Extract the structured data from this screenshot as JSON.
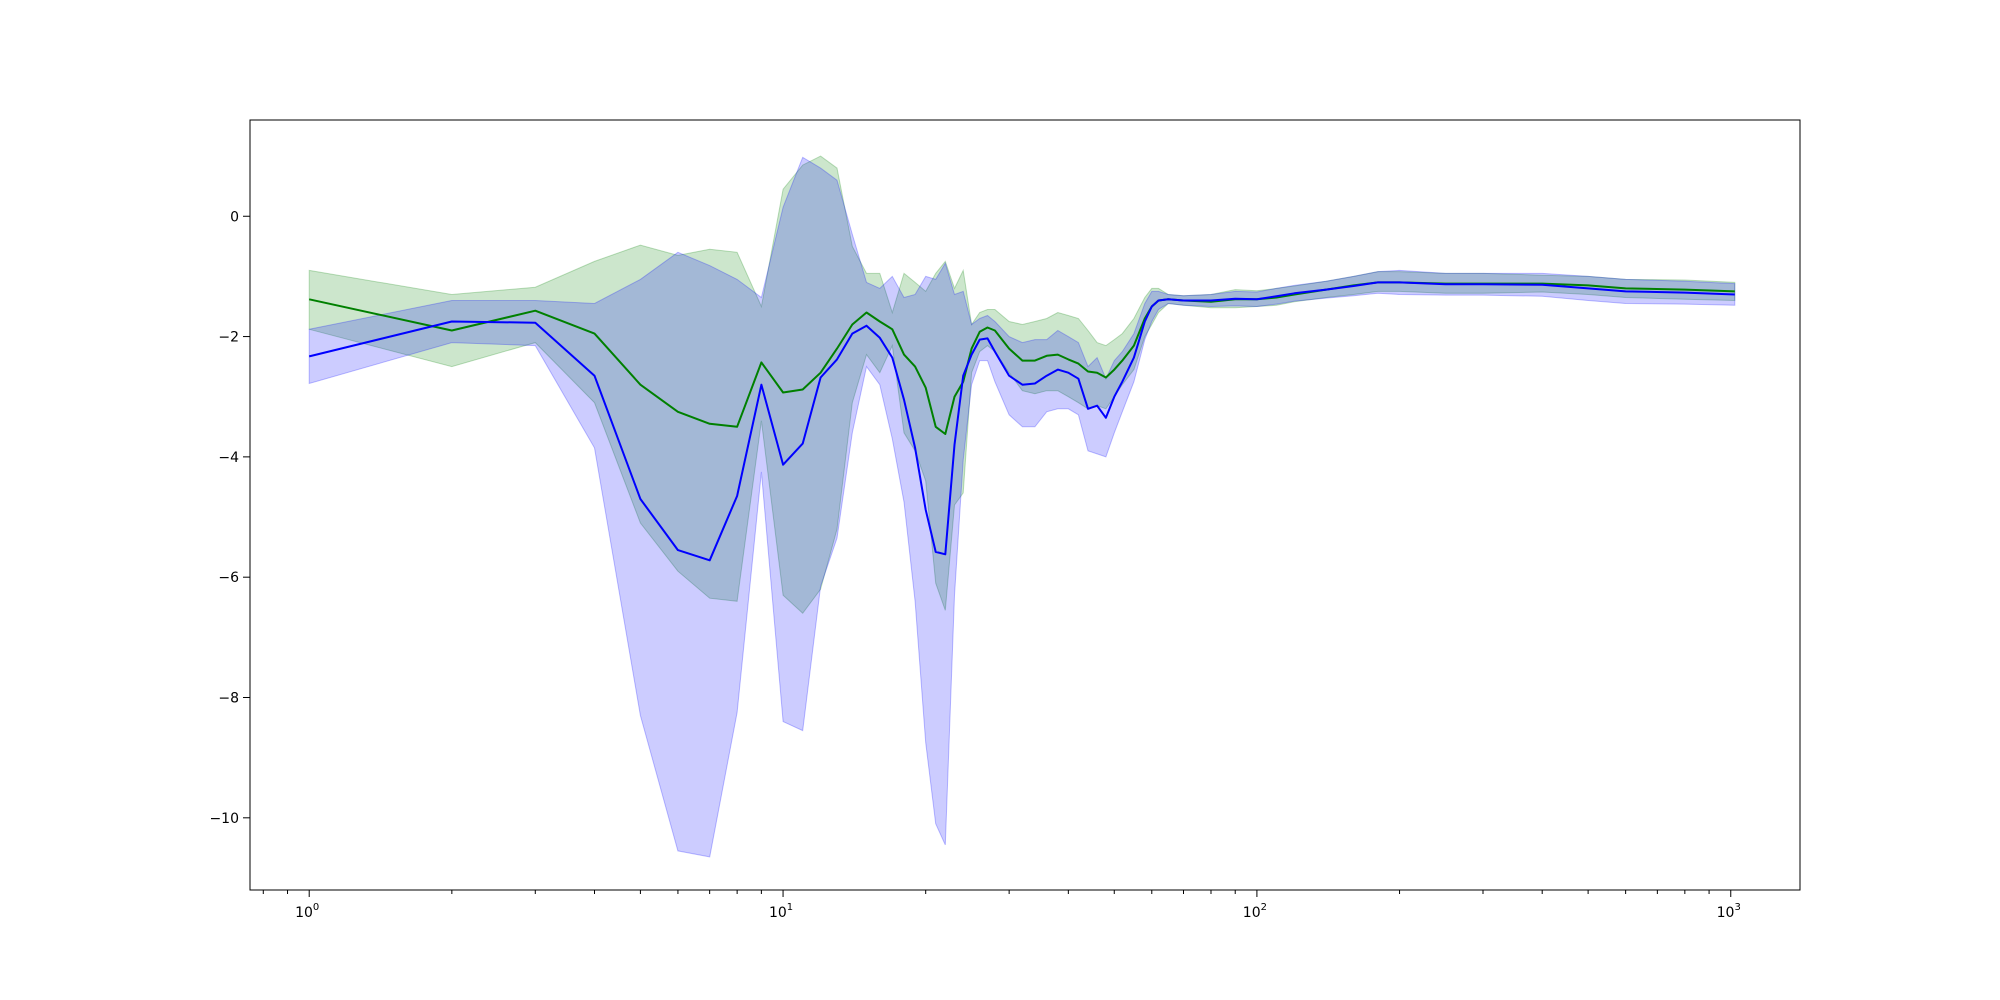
{
  "chart_data": {
    "type": "line",
    "title": "",
    "xlabel": "",
    "ylabel": "",
    "xscale": "log",
    "xlim": [
      0.75,
      1400
    ],
    "ylim": [
      -11.2,
      1.6
    ],
    "grid": false,
    "legend": "none",
    "x_ticks": [
      {
        "value": 1,
        "label": "10",
        "exp": "0"
      },
      {
        "value": 10,
        "label": "10",
        "exp": "1"
      },
      {
        "value": 100,
        "label": "10",
        "exp": "2"
      },
      {
        "value": 1000,
        "label": "10",
        "exp": "3"
      }
    ],
    "y_ticks": [
      {
        "value": 0,
        "label": "0"
      },
      {
        "value": -2,
        "label": "−2"
      },
      {
        "value": -4,
        "label": "−4"
      },
      {
        "value": -6,
        "label": "−6"
      },
      {
        "value": -8,
        "label": "−8"
      },
      {
        "value": -10,
        "label": "−10"
      }
    ],
    "series": [
      {
        "color": "#008000",
        "band_color": "#008000",
        "band_opacity": 0.2,
        "points": [
          [
            1,
            -1.38,
            -0.9,
            -1.88
          ],
          [
            2,
            -1.9,
            -1.3,
            -2.5
          ],
          [
            3,
            -1.57,
            -1.18,
            -2.1
          ],
          [
            4,
            -1.95,
            -0.75,
            -3.1
          ],
          [
            5,
            -2.8,
            -0.48,
            -5.1
          ],
          [
            6,
            -3.25,
            -0.65,
            -5.9
          ],
          [
            7,
            -3.45,
            -0.55,
            -6.35
          ],
          [
            8,
            -3.5,
            -0.6,
            -6.4
          ],
          [
            9,
            -2.43,
            -1.5,
            -3.4
          ],
          [
            10,
            -2.93,
            0.45,
            -6.3
          ],
          [
            11,
            -2.88,
            0.85,
            -6.6
          ],
          [
            12,
            -2.6,
            1.0,
            -6.2
          ],
          [
            13,
            -2.2,
            0.8,
            -5.2
          ],
          [
            14,
            -1.8,
            -0.5,
            -3.1
          ],
          [
            15,
            -1.6,
            -0.95,
            -2.3
          ],
          [
            16,
            -1.75,
            -0.95,
            -2.6
          ],
          [
            17,
            -1.88,
            -1.6,
            -2.15
          ],
          [
            18,
            -2.3,
            -0.95,
            -3.6
          ],
          [
            19,
            -2.5,
            -1.1,
            -3.9
          ],
          [
            20,
            -2.85,
            -1.25,
            -4.4
          ],
          [
            21,
            -3.5,
            -0.95,
            -6.1
          ],
          [
            22,
            -3.62,
            -0.75,
            -6.55
          ],
          [
            23,
            -3.0,
            -1.2,
            -4.8
          ],
          [
            24,
            -2.75,
            -0.9,
            -4.6
          ],
          [
            25,
            -2.2,
            -1.8,
            -2.6
          ],
          [
            26,
            -1.92,
            -1.6,
            -2.25
          ],
          [
            27,
            -1.85,
            -1.55,
            -2.15
          ],
          [
            28,
            -1.9,
            -1.55,
            -2.25
          ],
          [
            30,
            -2.2,
            -1.75,
            -2.6
          ],
          [
            32,
            -2.4,
            -1.8,
            -2.9
          ],
          [
            34,
            -2.4,
            -1.75,
            -2.95
          ],
          [
            36,
            -2.32,
            -1.7,
            -2.9
          ],
          [
            38,
            -2.3,
            -1.6,
            -2.9
          ],
          [
            40,
            -2.38,
            -1.65,
            -3.0
          ],
          [
            42,
            -2.45,
            -1.7,
            -3.1
          ],
          [
            44,
            -2.58,
            -1.9,
            -3.2
          ],
          [
            46,
            -2.6,
            -2.1,
            -3.15
          ],
          [
            48,
            -2.68,
            -2.15,
            -3.2
          ],
          [
            50,
            -2.55,
            -2.05,
            -3.0
          ],
          [
            52,
            -2.4,
            -1.95,
            -2.8
          ],
          [
            55,
            -2.15,
            -1.7,
            -2.55
          ],
          [
            58,
            -1.7,
            -1.35,
            -2.0
          ],
          [
            60,
            -1.5,
            -1.2,
            -1.8
          ],
          [
            62,
            -1.4,
            -1.2,
            -1.6
          ],
          [
            65,
            -1.38,
            -1.3,
            -1.45
          ],
          [
            70,
            -1.4,
            -1.32,
            -1.48
          ],
          [
            80,
            -1.42,
            -1.3,
            -1.52
          ],
          [
            90,
            -1.38,
            -1.22,
            -1.52
          ],
          [
            100,
            -1.38,
            -1.24,
            -1.5
          ],
          [
            110,
            -1.35,
            -1.2,
            -1.48
          ],
          [
            120,
            -1.3,
            -1.16,
            -1.42
          ],
          [
            140,
            -1.22,
            -1.08,
            -1.35
          ],
          [
            160,
            -1.15,
            -1.0,
            -1.3
          ],
          [
            180,
            -1.1,
            -0.92,
            -1.25
          ],
          [
            200,
            -1.1,
            -0.92,
            -1.25
          ],
          [
            250,
            -1.12,
            -0.95,
            -1.28
          ],
          [
            300,
            -1.12,
            -0.95,
            -1.28
          ],
          [
            400,
            -1.12,
            -0.98,
            -1.26
          ],
          [
            500,
            -1.15,
            -1.0,
            -1.3
          ],
          [
            600,
            -1.2,
            -1.05,
            -1.35
          ],
          [
            800,
            -1.22,
            -1.06,
            -1.38
          ],
          [
            1020,
            -1.25,
            -1.1,
            -1.4
          ]
        ]
      },
      {
        "color": "#0000ff",
        "band_color": "#0000ff",
        "band_opacity": 0.2,
        "points": [
          [
            1,
            -2.33,
            -1.88,
            -2.78
          ],
          [
            2,
            -1.75,
            -1.4,
            -2.1
          ],
          [
            3,
            -1.77,
            -1.4,
            -2.15
          ],
          [
            4,
            -2.65,
            -1.45,
            -3.85
          ],
          [
            5,
            -4.7,
            -1.05,
            -8.3
          ],
          [
            6,
            -5.55,
            -0.6,
            -10.55
          ],
          [
            7,
            -5.72,
            -0.82,
            -10.65
          ],
          [
            8,
            -4.65,
            -1.05,
            -8.25
          ],
          [
            9,
            -2.8,
            -1.35,
            -4.25
          ],
          [
            10,
            -4.13,
            0.15,
            -8.4
          ],
          [
            11,
            -3.78,
            0.98,
            -8.55
          ],
          [
            12,
            -2.68,
            0.8,
            -6.15
          ],
          [
            13,
            -2.38,
            0.6,
            -5.35
          ],
          [
            14,
            -1.95,
            -0.3,
            -3.6
          ],
          [
            15,
            -1.82,
            -1.1,
            -2.5
          ],
          [
            16,
            -2.02,
            -1.2,
            -2.8
          ],
          [
            17,
            -2.35,
            -1.0,
            -3.7
          ],
          [
            18,
            -3.05,
            -1.35,
            -4.75
          ],
          [
            19,
            -3.85,
            -1.3,
            -6.4
          ],
          [
            20,
            -4.88,
            -1.0,
            -8.75
          ],
          [
            21,
            -5.58,
            -1.05,
            -10.1
          ],
          [
            22,
            -5.62,
            -0.78,
            -10.45
          ],
          [
            23,
            -3.8,
            -1.3,
            -6.3
          ],
          [
            24,
            -2.65,
            -1.25,
            -4.05
          ],
          [
            25,
            -2.3,
            -1.8,
            -2.8
          ],
          [
            26,
            -2.05,
            -1.7,
            -2.4
          ],
          [
            27,
            -2.03,
            -1.65,
            -2.4
          ],
          [
            28,
            -2.25,
            -1.75,
            -2.75
          ],
          [
            30,
            -2.65,
            -2.0,
            -3.3
          ],
          [
            32,
            -2.8,
            -2.1,
            -3.5
          ],
          [
            34,
            -2.78,
            -2.05,
            -3.5
          ],
          [
            36,
            -2.65,
            -2.05,
            -3.25
          ],
          [
            38,
            -2.55,
            -1.9,
            -3.2
          ],
          [
            40,
            -2.6,
            -2.0,
            -3.2
          ],
          [
            42,
            -2.7,
            -2.1,
            -3.3
          ],
          [
            44,
            -3.2,
            -2.5,
            -3.9
          ],
          [
            46,
            -3.15,
            -2.35,
            -3.95
          ],
          [
            48,
            -3.35,
            -2.7,
            -4.0
          ],
          [
            50,
            -3.0,
            -2.4,
            -3.6
          ],
          [
            52,
            -2.75,
            -2.25,
            -3.25
          ],
          [
            55,
            -2.35,
            -1.95,
            -2.75
          ],
          [
            58,
            -1.75,
            -1.45,
            -2.05
          ],
          [
            60,
            -1.5,
            -1.25,
            -1.75
          ],
          [
            62,
            -1.4,
            -1.25,
            -1.55
          ],
          [
            65,
            -1.38,
            -1.3,
            -1.45
          ],
          [
            70,
            -1.4,
            -1.32,
            -1.48
          ],
          [
            80,
            -1.4,
            -1.3,
            -1.5
          ],
          [
            90,
            -1.37,
            -1.25,
            -1.49
          ],
          [
            100,
            -1.38,
            -1.26,
            -1.5
          ],
          [
            110,
            -1.33,
            -1.2,
            -1.46
          ],
          [
            120,
            -1.28,
            -1.15,
            -1.41
          ],
          [
            140,
            -1.22,
            -1.08,
            -1.36
          ],
          [
            160,
            -1.16,
            -1.0,
            -1.32
          ],
          [
            180,
            -1.1,
            -0.92,
            -1.28
          ],
          [
            200,
            -1.1,
            -0.9,
            -1.3
          ],
          [
            250,
            -1.13,
            -0.95,
            -1.31
          ],
          [
            300,
            -1.13,
            -0.95,
            -1.31
          ],
          [
            400,
            -1.14,
            -0.95,
            -1.33
          ],
          [
            500,
            -1.2,
            -1.0,
            -1.4
          ],
          [
            600,
            -1.25,
            -1.05,
            -1.45
          ],
          [
            800,
            -1.27,
            -1.08,
            -1.46
          ],
          [
            1020,
            -1.3,
            -1.12,
            -1.48
          ]
        ]
      }
    ]
  }
}
